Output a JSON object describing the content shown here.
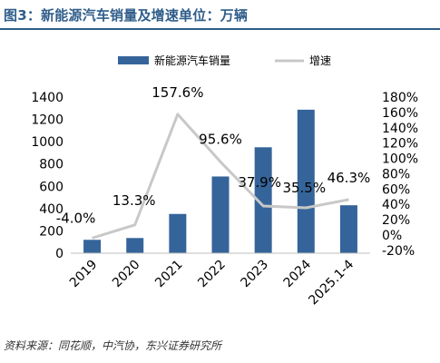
{
  "figure": {
    "title": "图3：新能源汽车销量及增速单位：万辆",
    "source": "资料来源：同花顺，中汽协，东兴证券研究所"
  },
  "colors": {
    "title": "#2f5d8a",
    "bar": "#35649a",
    "line": "#c8c8c8",
    "axis": "#bfbfbf",
    "text": "#000000"
  },
  "chart_data": {
    "type": "bar",
    "categories": [
      "2019",
      "2020",
      "2021",
      "2022",
      "2023",
      "2024",
      "2025.1-4"
    ],
    "series": [
      {
        "name": "新能源汽车销量",
        "type": "bar",
        "axis": "left",
        "values": [
          120,
          136,
          352,
          688,
          950,
          1287,
          430
        ]
      },
      {
        "name": "增速",
        "type": "line",
        "axis": "right",
        "values": [
          -4.0,
          13.3,
          157.6,
          95.6,
          37.9,
          35.5,
          46.3
        ],
        "labels": [
          "-4.0%",
          "13.3%",
          "157.6%",
          "95.6%",
          "37.9%",
          "35.5%",
          "46.3%"
        ]
      }
    ],
    "y_left": {
      "min": 0,
      "max": 1400,
      "ticks": [
        "0",
        "200",
        "400",
        "600",
        "800",
        "1000",
        "1200",
        "1400"
      ]
    },
    "y_right": {
      "min": -20,
      "max": 180,
      "ticks": [
        "-20%",
        "0%",
        "20%",
        "40%",
        "60%",
        "80%",
        "100%",
        "120%",
        "140%",
        "160%",
        "180%"
      ]
    },
    "grid": false,
    "legend_position": "top"
  }
}
